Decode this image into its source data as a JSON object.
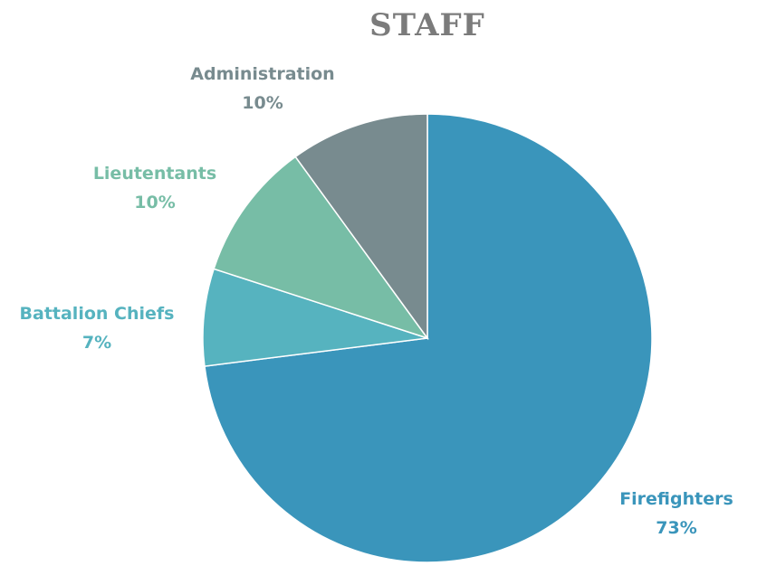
{
  "chart_data": {
    "type": "pie",
    "title": "STAFF",
    "categories": [
      "Firefighters",
      "Battalion Chiefs",
      "Lieutentants",
      "Administration"
    ],
    "values": [
      73,
      7,
      10,
      10
    ],
    "value_labels": [
      "73%",
      "7%",
      "10%",
      "10%"
    ],
    "colors": [
      "#3a95bb",
      "#56b3bf",
      "#77bda6",
      "#788b8f"
    ]
  }
}
